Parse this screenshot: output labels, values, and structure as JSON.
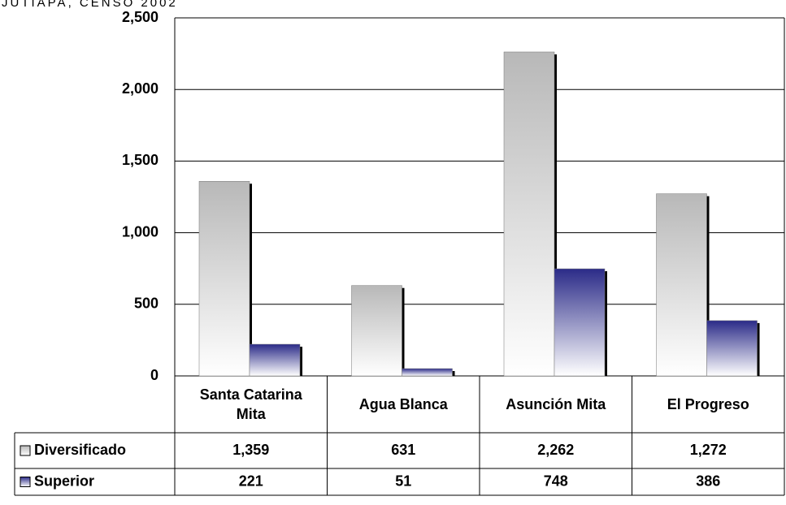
{
  "chart_data": {
    "type": "bar",
    "title": "JUTIAPA, CENSO 2002",
    "categories": [
      "Santa Catarina Mita",
      "Agua Blanca",
      "Asunción Mita",
      "El Progreso"
    ],
    "series": [
      {
        "name": "Diversificado",
        "color": "#c0c0c0",
        "values": [
          1359,
          631,
          2262,
          1272
        ],
        "value_labels": [
          "1,359",
          "631",
          "2,262",
          "1,272"
        ]
      },
      {
        "name": "Superior",
        "color": "#333399",
        "values": [
          221,
          51,
          748,
          386
        ],
        "value_labels": [
          "221",
          "51",
          "748",
          "386"
        ]
      }
    ],
    "ylim": [
      0,
      2500
    ],
    "yticks": [
      0,
      500,
      {
        "value": 1000,
        "label": "1,000"
      },
      {
        "value": 1500,
        "label": "1,500"
      },
      {
        "value": 2000,
        "label": "2,000"
      },
      {
        "value": 2500,
        "label": "2,500"
      }
    ],
    "grid": true
  }
}
